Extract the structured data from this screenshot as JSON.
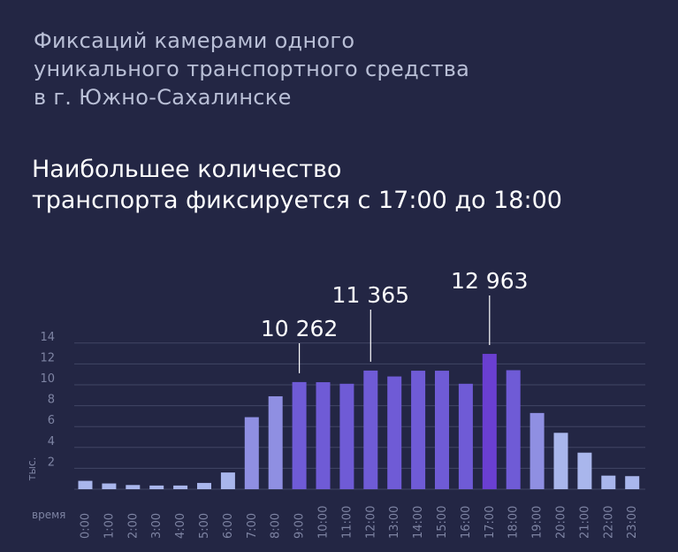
{
  "title_lines": [
    "Фиксаций камерами одного",
    "уникального транспортного средства",
    "в г. Южно-Сахалинске"
  ],
  "subtitle_lines": [
    "Наибольшее количество",
    "транспорта фиксируется с 17:00 до 18:00"
  ],
  "colors": {
    "background": "#232644",
    "bar_light": "#a9b6ec",
    "bar_mid": "#7b74d8",
    "bar_dark": "#6a3fd1",
    "grid": "#5a5f80",
    "axis_text": "#7e84a3"
  },
  "chart_data": {
    "type": "bar",
    "xlabel": "время",
    "ylabel": "тыс.",
    "ylim": [
      0,
      14
    ],
    "yticks": [
      "2",
      "4",
      "6",
      "8",
      "10",
      "12",
      "14"
    ],
    "grid": true,
    "categories": [
      "0:00",
      "1:00",
      "2:00",
      "3:00",
      "4:00",
      "5:00",
      "6:00",
      "7:00",
      "8:00",
      "9:00",
      "10:00",
      "11:00",
      "12:00",
      "13:00",
      "14:00",
      "15:00",
      "16:00",
      "17:00",
      "18:00",
      "19:00",
      "20:00",
      "21:00",
      "22:00",
      "23:00"
    ],
    "values": [
      0.8,
      0.55,
      0.4,
      0.35,
      0.35,
      0.6,
      1.6,
      6.9,
      8.9,
      10.262,
      10.25,
      10.1,
      11.365,
      10.8,
      11.35,
      11.35,
      10.1,
      12.963,
      11.4,
      7.3,
      5.4,
      3.5,
      1.3,
      1.25
    ],
    "annotations": [
      {
        "category": "9:00",
        "label": "10 262"
      },
      {
        "category": "12:00",
        "label": "11 365"
      },
      {
        "category": "17:00",
        "label": "12 963"
      }
    ]
  }
}
